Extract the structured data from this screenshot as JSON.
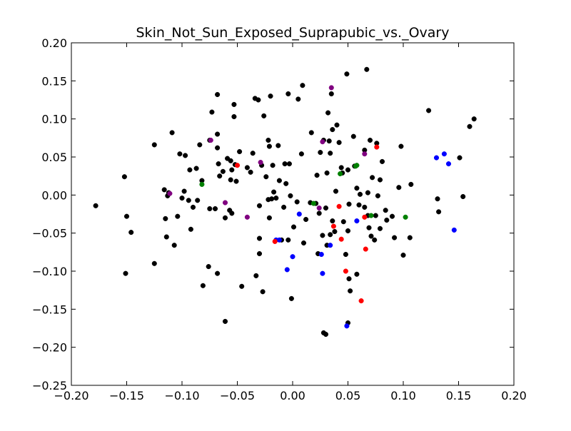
{
  "chart_data": {
    "type": "scatter",
    "title": "Skin_Not_Sun_Exposed_Suprapubic_vs._Ovary",
    "xlabel": "",
    "ylabel": "",
    "xlim": [
      -0.2,
      0.2
    ],
    "ylim": [
      -0.25,
      0.2
    ],
    "xticks": [
      "−0.20",
      "−0.15",
      "−0.10",
      "−0.05",
      "0.00",
      "0.05",
      "0.10",
      "0.15",
      "0.20"
    ],
    "xtick_values": [
      -0.2,
      -0.15,
      -0.1,
      -0.05,
      0.0,
      0.05,
      0.1,
      0.15,
      0.2
    ],
    "yticks": [
      "−0.25",
      "−0.20",
      "−0.15",
      "−0.10",
      "−0.05",
      "0.00",
      "0.05",
      "0.10",
      "0.15",
      "0.20"
    ],
    "ytick_values": [
      -0.25,
      -0.2,
      -0.15,
      -0.1,
      -0.05,
      0.0,
      0.05,
      0.1,
      0.15,
      0.2
    ],
    "grid": false,
    "series": [
      {
        "color": "#000000",
        "points": [
          [
            -0.178,
            -0.014
          ],
          [
            -0.152,
            0.024
          ],
          [
            -0.151,
            -0.103
          ],
          [
            -0.15,
            -0.028
          ],
          [
            -0.146,
            -0.049
          ],
          [
            -0.125,
            0.066
          ],
          [
            -0.125,
            -0.09
          ],
          [
            -0.116,
            0.007
          ],
          [
            -0.115,
            -0.031
          ],
          [
            -0.114,
            -0.055
          ],
          [
            -0.113,
            -0.001
          ],
          [
            -0.112,
            0.003
          ],
          [
            -0.109,
            0.082
          ],
          [
            -0.107,
            -0.066
          ],
          [
            -0.104,
            -0.028
          ],
          [
            -0.102,
            0.054
          ],
          [
            -0.1,
            -0.004
          ],
          [
            -0.098,
            0.005
          ],
          [
            -0.097,
            0.052
          ],
          [
            -0.094,
            -0.007
          ],
          [
            -0.093,
            0.033
          ],
          [
            -0.092,
            -0.045
          ],
          [
            -0.09,
            -0.016
          ],
          [
            -0.087,
            0.035
          ],
          [
            -0.086,
            -0.007
          ],
          [
            -0.084,
            0.066
          ],
          [
            -0.082,
            0.019
          ],
          [
            -0.081,
            -0.119
          ],
          [
            -0.076,
            -0.094
          ],
          [
            -0.075,
            0.072
          ],
          [
            -0.075,
            -0.018
          ],
          [
            -0.073,
            0.109
          ],
          [
            -0.07,
            -0.018
          ],
          [
            -0.068,
            0.132
          ],
          [
            -0.068,
            0.062
          ],
          [
            -0.068,
            0.08
          ],
          [
            -0.068,
            -0.103
          ],
          [
            -0.067,
            0.041
          ],
          [
            -0.066,
            0.025
          ],
          [
            -0.063,
            0.031
          ],
          [
            -0.061,
            -0.03
          ],
          [
            -0.061,
            -0.166
          ],
          [
            -0.059,
            0.048
          ],
          [
            -0.057,
            -0.02
          ],
          [
            -0.056,
            0.045
          ],
          [
            -0.056,
            0.02
          ],
          [
            -0.055,
            -0.024
          ],
          [
            -0.055,
            0.033
          ],
          [
            -0.053,
            0.119
          ],
          [
            -0.053,
            0.103
          ],
          [
            -0.052,
            0.04
          ],
          [
            -0.051,
            0.018
          ],
          [
            -0.048,
            0.057
          ],
          [
            -0.046,
            -0.12
          ],
          [
            -0.041,
            0.036
          ],
          [
            -0.038,
            0.03
          ],
          [
            -0.036,
            0.055
          ],
          [
            -0.034,
            0.127
          ],
          [
            -0.033,
            -0.106
          ],
          [
            -0.031,
            0.125
          ],
          [
            -0.03,
            -0.014
          ],
          [
            -0.03,
            -0.057
          ],
          [
            -0.03,
            -0.077
          ],
          [
            -0.028,
            0.039
          ],
          [
            -0.027,
            -0.127
          ],
          [
            -0.026,
            0.104
          ],
          [
            -0.024,
            0.024
          ],
          [
            -0.022,
            0.072
          ],
          [
            -0.022,
            -0.006
          ],
          [
            -0.021,
            0.064
          ],
          [
            -0.021,
            -0.03
          ],
          [
            -0.02,
            0.13
          ],
          [
            -0.019,
            -0.005
          ],
          [
            -0.018,
            0.039
          ],
          [
            -0.017,
            0.004
          ],
          [
            -0.015,
            -0.004
          ],
          [
            -0.013,
            0.065
          ],
          [
            -0.012,
            0.019
          ],
          [
            -0.01,
            -0.059
          ],
          [
            -0.008,
            -0.016
          ],
          [
            -0.007,
            0.041
          ],
          [
            -0.006,
            0.015
          ],
          [
            -0.004,
            0.133
          ],
          [
            -0.004,
            -0.059
          ],
          [
            -0.003,
            0.041
          ],
          [
            -0.002,
            -0.001
          ],
          [
            -0.001,
            -0.136
          ],
          [
            0.001,
            -0.042
          ],
          [
            0.004,
            -0.009
          ],
          [
            0.005,
            0.126
          ],
          [
            0.008,
            0.054
          ],
          [
            0.009,
            0.144
          ],
          [
            0.01,
            -0.063
          ],
          [
            0.012,
            -0.032
          ],
          [
            0.016,
            -0.01
          ],
          [
            0.017,
            0.082
          ],
          [
            0.021,
            -0.011
          ],
          [
            0.022,
            0.026
          ],
          [
            0.023,
            -0.077
          ],
          [
            0.024,
            -0.024
          ],
          [
            0.025,
            0.056
          ],
          [
            0.027,
            -0.053
          ],
          [
            0.028,
            0.072
          ],
          [
            0.028,
            -0.181
          ],
          [
            0.03,
            -0.183
          ],
          [
            0.03,
            -0.017
          ],
          [
            0.031,
            0.029
          ],
          [
            0.031,
            -0.066
          ],
          [
            0.032,
            0.108
          ],
          [
            0.033,
            0.071
          ],
          [
            0.034,
            0.055
          ],
          [
            0.034,
            -0.052
          ],
          [
            0.035,
            0.133
          ],
          [
            0.036,
            -0.034
          ],
          [
            0.036,
            0.086
          ],
          [
            0.038,
            -0.048
          ],
          [
            0.039,
            0.005
          ],
          [
            0.04,
            0.092
          ],
          [
            0.042,
            0.069
          ],
          [
            0.044,
            0.036
          ],
          [
            0.045,
            0.029
          ],
          [
            0.046,
            -0.035
          ],
          [
            0.048,
            -0.078
          ],
          [
            0.049,
            0.159
          ],
          [
            0.05,
            -0.168
          ],
          [
            0.05,
            0.033
          ],
          [
            0.05,
            -0.047
          ],
          [
            0.051,
            -0.012
          ],
          [
            0.051,
            -0.11
          ],
          [
            0.052,
            -0.126
          ],
          [
            0.055,
            0.077
          ],
          [
            0.056,
            0.038
          ],
          [
            0.058,
            0.009
          ],
          [
            0.058,
            -0.104
          ],
          [
            0.06,
            -0.013
          ],
          [
            0.061,
            0.001
          ],
          [
            0.065,
            -0.016
          ],
          [
            0.065,
            0.059
          ],
          [
            0.067,
            0.165
          ],
          [
            0.068,
            0.003
          ],
          [
            0.068,
            -0.027
          ],
          [
            0.069,
            -0.043
          ],
          [
            0.07,
            0.072
          ],
          [
            0.071,
            -0.054
          ],
          [
            0.072,
            0.023
          ],
          [
            0.074,
            -0.059
          ],
          [
            0.075,
            -0.027
          ],
          [
            0.076,
            0.068
          ],
          [
            0.077,
            -0.001
          ],
          [
            0.079,
            -0.044
          ],
          [
            0.079,
            0.02
          ],
          [
            0.081,
            0.044
          ],
          [
            0.084,
            -0.02
          ],
          [
            0.085,
            -0.033
          ],
          [
            0.09,
            -0.028
          ],
          [
            0.092,
            -0.056
          ],
          [
            0.096,
            0.01
          ],
          [
            0.098,
            0.064
          ],
          [
            0.1,
            -0.079
          ],
          [
            0.106,
            -0.056
          ],
          [
            0.107,
            0.014
          ],
          [
            0.123,
            0.111
          ],
          [
            0.131,
            -0.005
          ],
          [
            0.132,
            -0.022
          ],
          [
            0.151,
            0.049
          ],
          [
            0.154,
            -0.002
          ],
          [
            0.16,
            0.09
          ],
          [
            0.164,
            0.1
          ]
        ]
      },
      {
        "color": "#0000ff",
        "points": [
          [
            -0.015,
            -0.059
          ],
          [
            -0.012,
            -0.059
          ],
          [
            -0.005,
            -0.098
          ],
          [
            0.0,
            -0.081
          ],
          [
            0.006,
            -0.025
          ],
          [
            0.026,
            -0.078
          ],
          [
            0.027,
            -0.103
          ],
          [
            0.034,
            -0.066
          ],
          [
            0.049,
            -0.172
          ],
          [
            0.058,
            -0.034
          ],
          [
            0.13,
            0.049
          ],
          [
            0.137,
            0.054
          ],
          [
            0.141,
            0.041
          ],
          [
            0.146,
            -0.046
          ]
        ]
      },
      {
        "color": "#ff0000",
        "points": [
          [
            -0.05,
            0.039
          ],
          [
            -0.016,
            -0.061
          ],
          [
            0.037,
            -0.041
          ],
          [
            0.042,
            -0.015
          ],
          [
            0.044,
            -0.058
          ],
          [
            0.048,
            -0.1
          ],
          [
            0.062,
            -0.139
          ],
          [
            0.065,
            -0.029
          ],
          [
            0.066,
            -0.071
          ],
          [
            0.076,
            0.063
          ]
        ]
      },
      {
        "color": "#008000",
        "points": [
          [
            -0.082,
            0.014
          ],
          [
            0.019,
            -0.011
          ],
          [
            0.043,
            0.028
          ],
          [
            0.057,
            0.038
          ],
          [
            0.058,
            0.039
          ],
          [
            0.071,
            -0.027
          ],
          [
            0.102,
            -0.029
          ]
        ]
      },
      {
        "color": "#800080",
        "points": [
          [
            -0.111,
            0.002
          ],
          [
            -0.074,
            0.072
          ],
          [
            -0.061,
            -0.01
          ],
          [
            -0.041,
            -0.029
          ],
          [
            -0.029,
            0.043
          ],
          [
            0.024,
            -0.017
          ],
          [
            0.027,
            0.07
          ],
          [
            0.035,
            0.141
          ],
          [
            0.065,
            0.054
          ]
        ]
      }
    ]
  }
}
